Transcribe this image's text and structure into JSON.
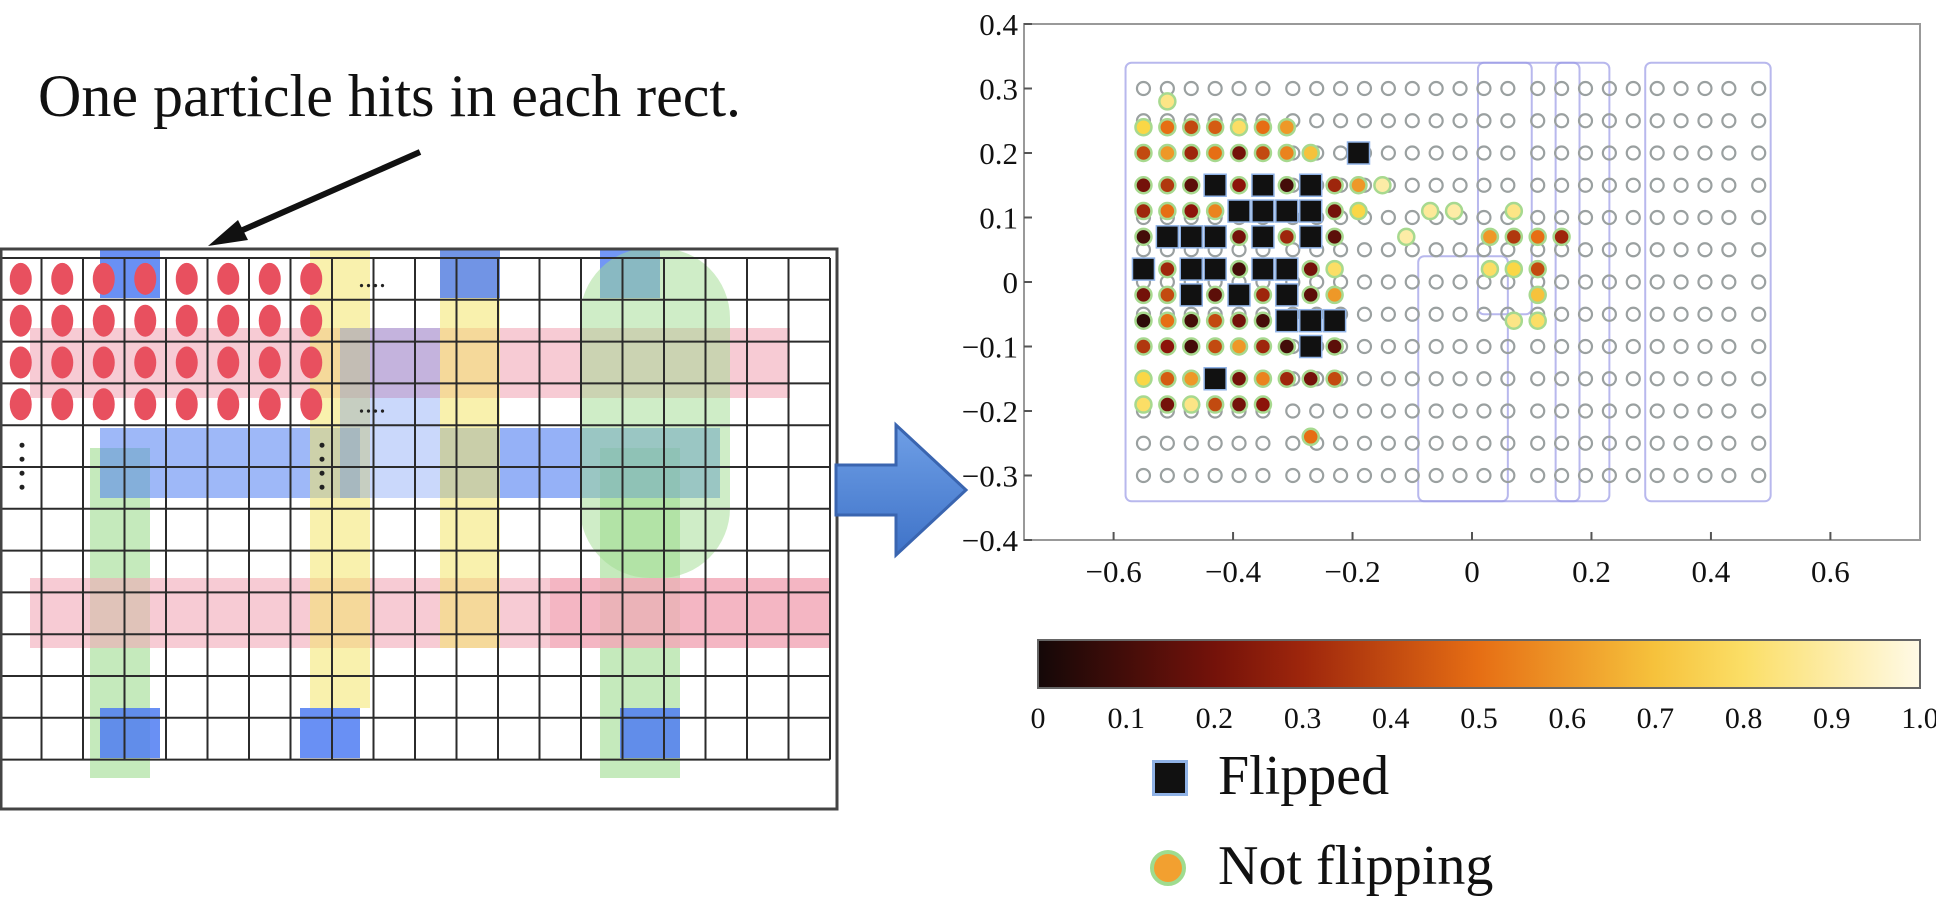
{
  "annotation": {
    "text": "One particle hits in each rect."
  },
  "layout_panel": {
    "grid_cols": 20,
    "grid_rows": 12,
    "particle_rows": [
      0,
      1,
      2,
      3
    ],
    "particle_cols": 8,
    "ellipsis": "....",
    "colors": {
      "particle": "#e8505f",
      "poly": "#4f7df2",
      "diffusion": "#f2a8b8",
      "nwell": "#9fdc8f",
      "metal": "#f4e66a",
      "grid": "#2b2b2b"
    }
  },
  "chart_data": {
    "type": "scatter",
    "title": "",
    "xlabel": "",
    "ylabel": "",
    "xlim": [
      -0.75,
      0.75
    ],
    "ylim": [
      -0.4,
      0.4
    ],
    "x_ticks": [
      "−0.6",
      "−0.4",
      "−0.2",
      "0",
      "0.2",
      "0.4",
      "0.6"
    ],
    "y_ticks": [
      "0.4",
      "0.3",
      "0.2",
      "0.1",
      "0",
      "−0.1",
      "−0.2",
      "−0.3",
      "−0.4"
    ],
    "grid": {
      "x_start": -0.55,
      "y_start": -0.3,
      "step": 0.041,
      "cols": 26,
      "rows": 13
    },
    "colorbar": {
      "ticks": [
        "0",
        "0.1",
        "0.2",
        "0.3",
        "0.4",
        "0.5",
        "0.6",
        "0.7",
        "0.8",
        "0.9",
        "1.0"
      ],
      "range": [
        0,
        1
      ]
    },
    "flipped_points": [
      [
        -0.43,
        0.15
      ],
      [
        -0.35,
        0.15
      ],
      [
        -0.27,
        0.15
      ],
      [
        -0.39,
        0.11
      ],
      [
        -0.35,
        0.11
      ],
      [
        -0.31,
        0.11
      ],
      [
        -0.27,
        0.11
      ],
      [
        -0.51,
        0.07
      ],
      [
        -0.47,
        0.07
      ],
      [
        -0.43,
        0.07
      ],
      [
        -0.35,
        0.07
      ],
      [
        -0.27,
        0.07
      ],
      [
        -0.55,
        0.02
      ],
      [
        -0.47,
        0.02
      ],
      [
        -0.43,
        0.02
      ],
      [
        -0.35,
        0.02
      ],
      [
        -0.31,
        0.02
      ],
      [
        -0.47,
        -0.02
      ],
      [
        -0.39,
        -0.02
      ],
      [
        -0.31,
        -0.02
      ],
      [
        -0.31,
        -0.06
      ],
      [
        -0.27,
        -0.06
      ],
      [
        -0.23,
        -0.06
      ],
      [
        -0.27,
        -0.1
      ],
      [
        -0.43,
        -0.15
      ],
      [
        -0.19,
        0.2
      ]
    ],
    "not_flipping_points": [
      {
        "x": -0.55,
        "y": 0.24,
        "v": 0.75
      },
      {
        "x": -0.51,
        "y": 0.24,
        "v": 0.5
      },
      {
        "x": -0.47,
        "y": 0.24,
        "v": 0.4
      },
      {
        "x": -0.43,
        "y": 0.24,
        "v": 0.45
      },
      {
        "x": -0.39,
        "y": 0.24,
        "v": 0.8
      },
      {
        "x": -0.35,
        "y": 0.24,
        "v": 0.5
      },
      {
        "x": -0.31,
        "y": 0.24,
        "v": 0.6
      },
      {
        "x": -0.55,
        "y": 0.2,
        "v": 0.4
      },
      {
        "x": -0.51,
        "y": 0.2,
        "v": 0.6
      },
      {
        "x": -0.47,
        "y": 0.2,
        "v": 0.3
      },
      {
        "x": -0.43,
        "y": 0.2,
        "v": 0.5
      },
      {
        "x": -0.39,
        "y": 0.2,
        "v": 0.2
      },
      {
        "x": -0.35,
        "y": 0.2,
        "v": 0.4
      },
      {
        "x": -0.31,
        "y": 0.2,
        "v": 0.55
      },
      {
        "x": -0.27,
        "y": 0.2,
        "v": 0.7
      },
      {
        "x": -0.55,
        "y": 0.15,
        "v": 0.2
      },
      {
        "x": -0.51,
        "y": 0.15,
        "v": 0.35
      },
      {
        "x": -0.47,
        "y": 0.15,
        "v": 0.15
      },
      {
        "x": -0.39,
        "y": 0.15,
        "v": 0.25
      },
      {
        "x": -0.31,
        "y": 0.15,
        "v": 0.1
      },
      {
        "x": -0.23,
        "y": 0.15,
        "v": 0.3
      },
      {
        "x": -0.19,
        "y": 0.15,
        "v": 0.6
      },
      {
        "x": -0.55,
        "y": 0.11,
        "v": 0.3
      },
      {
        "x": -0.51,
        "y": 0.11,
        "v": 0.5
      },
      {
        "x": -0.47,
        "y": 0.11,
        "v": 0.25
      },
      {
        "x": -0.43,
        "y": 0.11,
        "v": 0.55
      },
      {
        "x": -0.23,
        "y": 0.11,
        "v": 0.2
      },
      {
        "x": -0.19,
        "y": 0.11,
        "v": 0.75
      },
      {
        "x": -0.55,
        "y": 0.07,
        "v": 0.1
      },
      {
        "x": -0.39,
        "y": 0.07,
        "v": 0.2
      },
      {
        "x": -0.31,
        "y": 0.07,
        "v": 0.3
      },
      {
        "x": -0.23,
        "y": 0.07,
        "v": 0.15
      },
      {
        "x": -0.51,
        "y": 0.02,
        "v": 0.3
      },
      {
        "x": -0.39,
        "y": 0.02,
        "v": 0.1
      },
      {
        "x": -0.27,
        "y": 0.02,
        "v": 0.2
      },
      {
        "x": -0.23,
        "y": 0.02,
        "v": 0.8
      },
      {
        "x": -0.55,
        "y": -0.02,
        "v": 0.2
      },
      {
        "x": -0.51,
        "y": -0.02,
        "v": 0.4
      },
      {
        "x": -0.43,
        "y": -0.02,
        "v": 0.15
      },
      {
        "x": -0.35,
        "y": -0.02,
        "v": 0.3
      },
      {
        "x": -0.27,
        "y": -0.02,
        "v": 0.15
      },
      {
        "x": -0.23,
        "y": -0.02,
        "v": 0.6
      },
      {
        "x": -0.55,
        "y": -0.06,
        "v": 0.05
      },
      {
        "x": -0.51,
        "y": -0.06,
        "v": 0.5
      },
      {
        "x": -0.47,
        "y": -0.06,
        "v": 0.1
      },
      {
        "x": -0.43,
        "y": -0.06,
        "v": 0.4
      },
      {
        "x": -0.39,
        "y": -0.06,
        "v": 0.2
      },
      {
        "x": -0.35,
        "y": -0.06,
        "v": 0.1
      },
      {
        "x": -0.55,
        "y": -0.1,
        "v": 0.35
      },
      {
        "x": -0.51,
        "y": -0.1,
        "v": 0.25
      },
      {
        "x": -0.47,
        "y": -0.1,
        "v": 0.1
      },
      {
        "x": -0.43,
        "y": -0.1,
        "v": 0.4
      },
      {
        "x": -0.39,
        "y": -0.1,
        "v": 0.6
      },
      {
        "x": -0.35,
        "y": -0.1,
        "v": 0.3
      },
      {
        "x": -0.31,
        "y": -0.1,
        "v": 0.1
      },
      {
        "x": -0.23,
        "y": -0.1,
        "v": 0.15
      },
      {
        "x": -0.55,
        "y": -0.15,
        "v": 0.75
      },
      {
        "x": -0.51,
        "y": -0.15,
        "v": 0.45
      },
      {
        "x": -0.47,
        "y": -0.15,
        "v": 0.6
      },
      {
        "x": -0.39,
        "y": -0.15,
        "v": 0.2
      },
      {
        "x": -0.35,
        "y": -0.15,
        "v": 0.55
      },
      {
        "x": -0.31,
        "y": -0.15,
        "v": 0.3
      },
      {
        "x": -0.27,
        "y": -0.15,
        "v": 0.2
      },
      {
        "x": -0.23,
        "y": -0.15,
        "v": 0.4
      },
      {
        "x": -0.55,
        "y": -0.19,
        "v": 0.8
      },
      {
        "x": -0.51,
        "y": -0.19,
        "v": 0.2
      },
      {
        "x": -0.47,
        "y": -0.19,
        "v": 0.85
      },
      {
        "x": -0.43,
        "y": -0.19,
        "v": 0.4
      },
      {
        "x": -0.39,
        "y": -0.19,
        "v": 0.2
      },
      {
        "x": -0.35,
        "y": -0.19,
        "v": 0.25
      },
      {
        "x": -0.27,
        "y": -0.24,
        "v": 0.5
      },
      {
        "x": 0.03,
        "y": 0.07,
        "v": 0.6
      },
      {
        "x": 0.07,
        "y": 0.07,
        "v": 0.35
      },
      {
        "x": 0.11,
        "y": 0.07,
        "v": 0.5
      },
      {
        "x": 0.15,
        "y": 0.07,
        "v": 0.3
      },
      {
        "x": -0.03,
        "y": 0.11,
        "v": 0.9
      },
      {
        "x": 0.07,
        "y": 0.11,
        "v": 0.85
      },
      {
        "x": 0.03,
        "y": 0.02,
        "v": 0.8
      },
      {
        "x": 0.11,
        "y": 0.02,
        "v": 0.4
      },
      {
        "x": 0.07,
        "y": 0.02,
        "v": 0.75
      },
      {
        "x": 0.11,
        "y": -0.02,
        "v": 0.7
      },
      {
        "x": 0.07,
        "y": -0.06,
        "v": 0.85
      },
      {
        "x": 0.11,
        "y": -0.06,
        "v": 0.8
      },
      {
        "x": -0.11,
        "y": 0.07,
        "v": 0.9
      },
      {
        "x": -0.07,
        "y": 0.11,
        "v": 0.88
      },
      {
        "x": -0.51,
        "y": 0.28,
        "v": 0.85
      },
      {
        "x": -0.15,
        "y": 0.15,
        "v": 0.9
      }
    ],
    "cell_outlines": "#9a9ae6",
    "legend": [
      {
        "marker": "square",
        "label": "Flipped",
        "color": "#111111"
      },
      {
        "marker": "circle",
        "label": "Not flipping",
        "color": "#f2a030"
      }
    ]
  }
}
